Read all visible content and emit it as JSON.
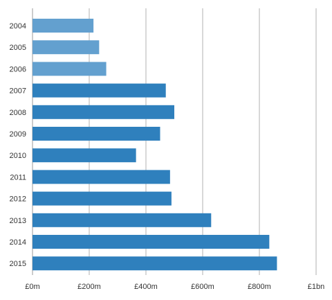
{
  "chart_data": {
    "type": "bar",
    "orientation": "horizontal",
    "title": "",
    "xlabel": "",
    "ylabel": "",
    "categories": [
      "2004",
      "2005",
      "2006",
      "2007",
      "2008",
      "2009",
      "2010",
      "2011",
      "2012",
      "2013",
      "2014",
      "2015"
    ],
    "values": [
      215,
      235,
      260,
      470,
      500,
      450,
      365,
      485,
      490,
      630,
      835,
      862
    ],
    "unit": "£m",
    "xlim": [
      0,
      1000
    ],
    "x_ticks": [
      0,
      200,
      400,
      600,
      800,
      1000
    ],
    "x_tick_labels": [
      "£0m",
      "£200m",
      "£400m",
      "£600m",
      "£800m",
      "£1bn"
    ],
    "grid": "vertical",
    "legend": "none",
    "colors": {
      "bar_light": "#63a0cf",
      "bar_dark": "#2f80bd",
      "grid": "#cccccc",
      "axis": "#999999"
    }
  }
}
